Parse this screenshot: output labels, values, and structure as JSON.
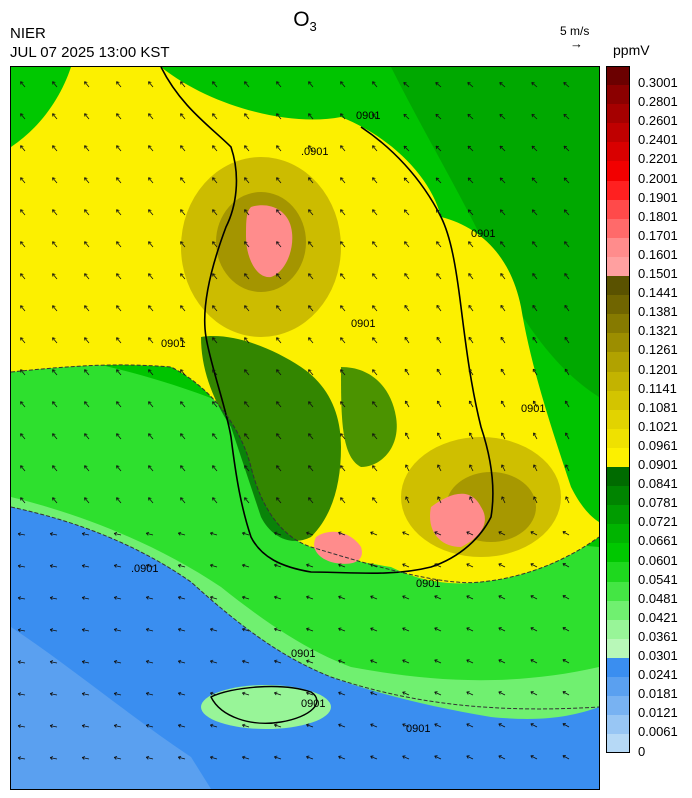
{
  "header": {
    "agency": "NIER",
    "datetime": "JUL 07 2025 13:00 KST",
    "species_base": "O",
    "species_sub": "3",
    "units": "ppmV",
    "wind_ref_label": "5 m/s",
    "wind_ref_arrow": "→"
  },
  "colorbar": {
    "levels": [
      {
        "label": "0.3001",
        "color": "#6b0000"
      },
      {
        "label": "0.2801",
        "color": "#8b0000"
      },
      {
        "label": "0.2601",
        "color": "#a50000"
      },
      {
        "label": "0.2401",
        "color": "#bf0000"
      },
      {
        "label": "0.2201",
        "color": "#d90000"
      },
      {
        "label": "0.2001",
        "color": "#f20000"
      },
      {
        "label": "0.1901",
        "color": "#ff2020"
      },
      {
        "label": "0.1801",
        "color": "#ff4a4a"
      },
      {
        "label": "0.1701",
        "color": "#ff6a6a"
      },
      {
        "label": "0.1601",
        "color": "#ff8c8c"
      },
      {
        "label": "0.1501",
        "color": "#ffa0a0"
      },
      {
        "label": "0.1441",
        "color": "#5a5200"
      },
      {
        "label": "0.1381",
        "color": "#706500"
      },
      {
        "label": "0.1321",
        "color": "#867a00"
      },
      {
        "label": "0.1261",
        "color": "#9c8e00"
      },
      {
        "label": "0.1201",
        "color": "#b1a200"
      },
      {
        "label": "0.1141",
        "color": "#c3b300"
      },
      {
        "label": "0.1081",
        "color": "#d3c400"
      },
      {
        "label": "0.1021",
        "color": "#e2d300"
      },
      {
        "label": "0.0961",
        "color": "#efe100"
      },
      {
        "label": "0.0901",
        "color": "#fcf000"
      },
      {
        "label": "0.0841",
        "color": "#006b00"
      },
      {
        "label": "0.0781",
        "color": "#008400"
      },
      {
        "label": "0.0721",
        "color": "#009c00"
      },
      {
        "label": "0.0661",
        "color": "#00b400"
      },
      {
        "label": "0.0601",
        "color": "#00c800"
      },
      {
        "label": "0.0541",
        "color": "#1ed81e"
      },
      {
        "label": "0.0481",
        "color": "#44e644"
      },
      {
        "label": "0.0421",
        "color": "#70f070"
      },
      {
        "label": "0.0361",
        "color": "#98f598"
      },
      {
        "label": "0.0301",
        "color": "#b8f8b8"
      },
      {
        "label": "0.0241",
        "color": "#3a8ef0"
      },
      {
        "label": "0.0181",
        "color": "#5aa0f0"
      },
      {
        "label": "0.0121",
        "color": "#78b2f2"
      },
      {
        "label": "0.0061",
        "color": "#98c6f4"
      },
      {
        "label": "0",
        "color": "#b6d9f6"
      }
    ]
  },
  "map": {
    "contour_labels": [
      "0901",
      ".0901",
      "0901",
      "0901",
      "0901",
      "0901",
      "0901",
      ".0901",
      "0901",
      "0901",
      "0901"
    ]
  }
}
